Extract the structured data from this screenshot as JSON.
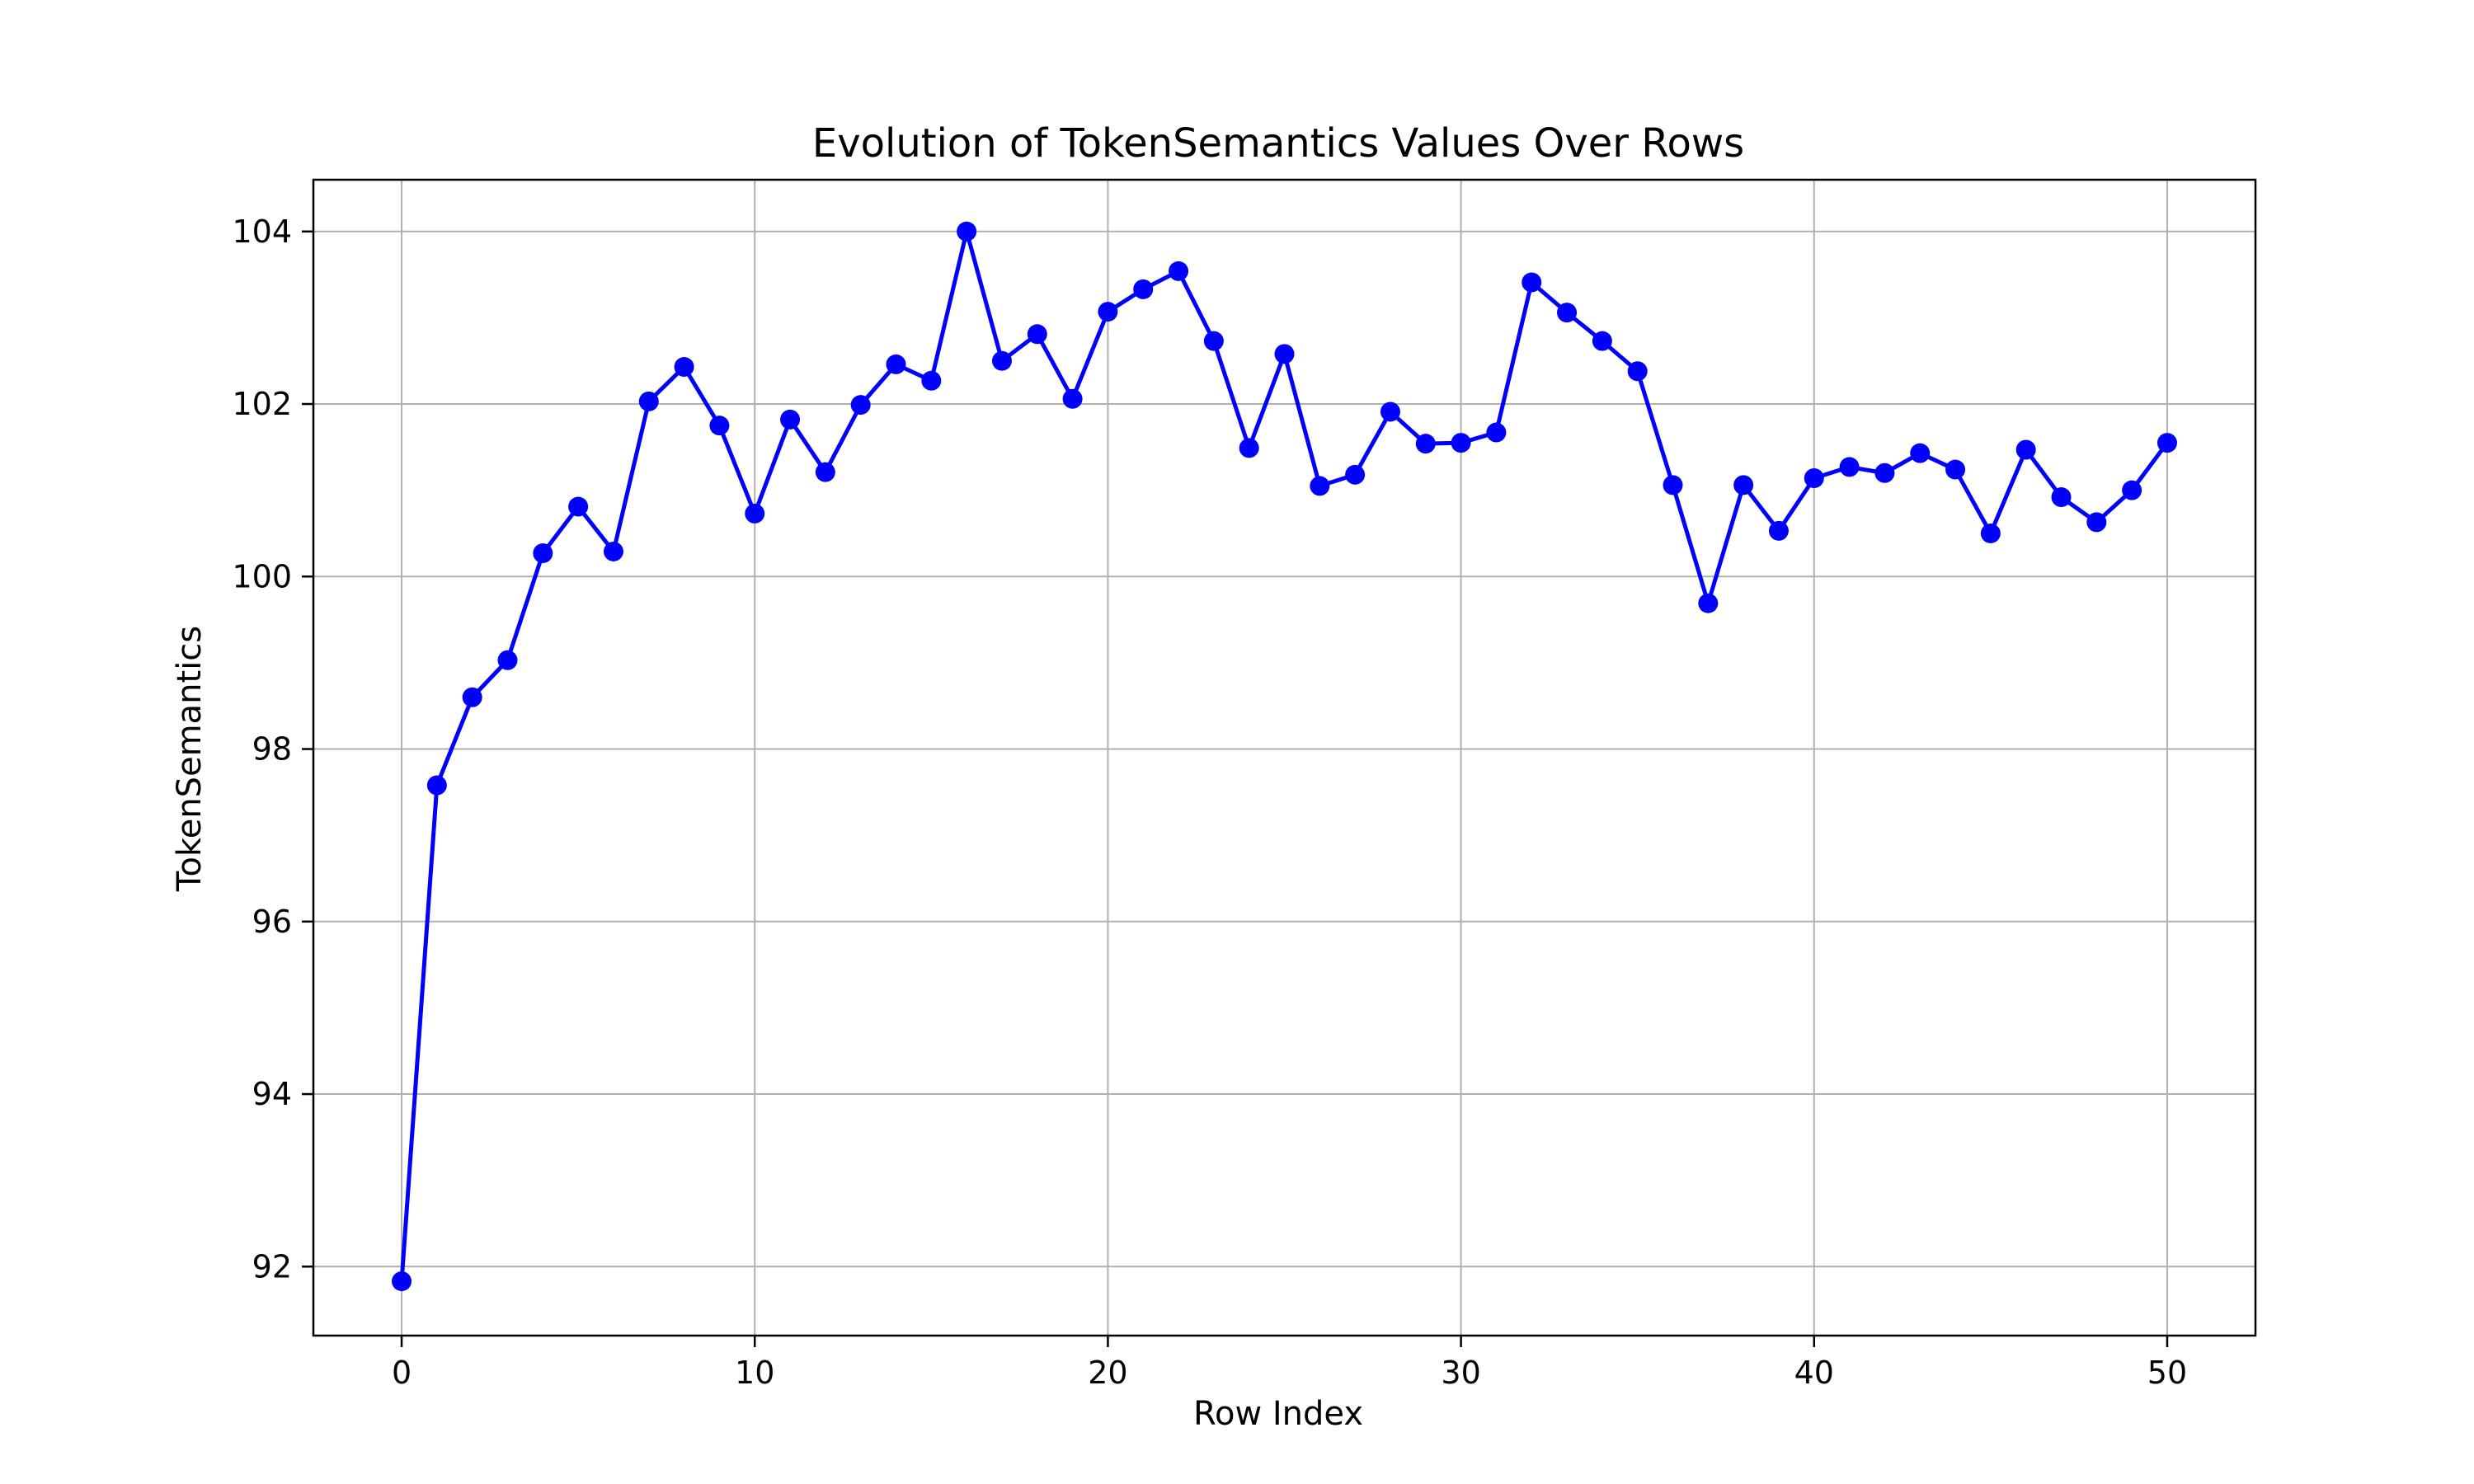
{
  "chart_data": {
    "type": "line",
    "title": "Evolution of TokenSemantics Values Over Rows",
    "xlabel": "Row Index",
    "ylabel": "TokenSemantics",
    "xlim": [
      -2.5,
      52.5
    ],
    "ylim": [
      91.2,
      104.6
    ],
    "xticks": [
      0,
      10,
      20,
      30,
      40,
      50
    ],
    "yticks": [
      92,
      94,
      96,
      98,
      100,
      102,
      104
    ],
    "grid": true,
    "legend": "none",
    "series": [
      {
        "color": "#0000ff",
        "marker": "circle",
        "x": [
          0,
          1,
          2,
          3,
          4,
          5,
          6,
          7,
          8,
          9,
          10,
          11,
          12,
          13,
          14,
          15,
          16,
          17,
          18,
          19,
          20,
          21,
          22,
          23,
          24,
          25,
          26,
          27,
          28,
          29,
          30,
          31,
          32,
          33,
          34,
          35,
          36,
          37,
          38,
          39,
          40,
          41,
          42,
          43,
          44,
          45,
          46,
          47,
          48,
          49,
          50
        ],
        "values": [
          91.83,
          97.58,
          98.6,
          99.03,
          100.27,
          100.81,
          100.29,
          102.03,
          102.43,
          101.75,
          100.73,
          101.82,
          101.21,
          101.99,
          102.46,
          102.27,
          104.0,
          102.5,
          102.81,
          102.06,
          103.07,
          103.33,
          103.54,
          102.73,
          101.49,
          102.58,
          101.05,
          101.18,
          101.91,
          101.54,
          101.55,
          101.67,
          103.41,
          103.06,
          102.73,
          102.38,
          101.06,
          99.69,
          101.06,
          100.53,
          101.14,
          101.27,
          101.2,
          101.43,
          101.24,
          100.5,
          101.47,
          100.92,
          100.63,
          101.0,
          101.55
        ]
      }
    ]
  }
}
